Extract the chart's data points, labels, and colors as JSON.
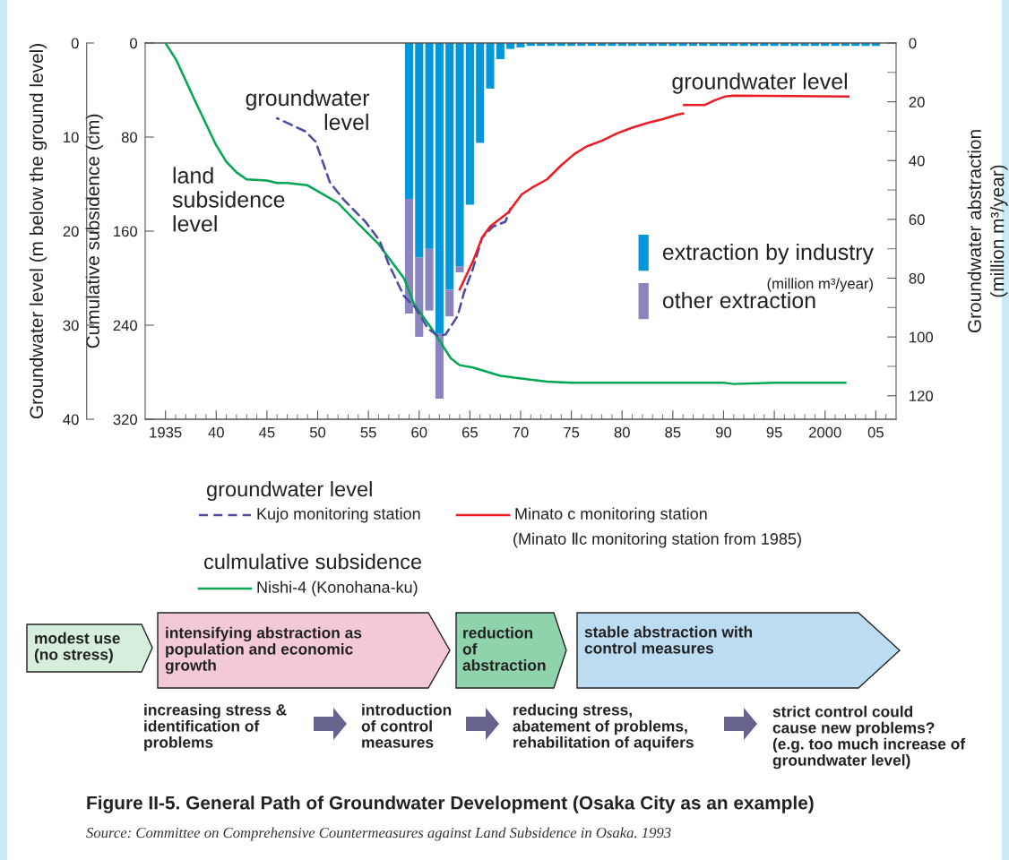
{
  "chart_data": {
    "type": "line",
    "title": "Figure II-5. General Path of Groundwater Development (Osaka City as an example)",
    "xlim": [
      1933,
      2007
    ],
    "xticks": [
      {
        "value": 1935,
        "label": "1935"
      },
      {
        "value": 1936,
        "label": null
      },
      {
        "value": 1937,
        "label": null
      },
      {
        "value": 1938,
        "label": null
      },
      {
        "value": 1939,
        "label": null
      },
      {
        "value": 1940,
        "label": "40"
      },
      {
        "value": 1941,
        "label": null
      },
      {
        "value": 1942,
        "label": null
      },
      {
        "value": 1943,
        "label": null
      },
      {
        "value": 1944,
        "label": null
      },
      {
        "value": 1945,
        "label": "45"
      },
      {
        "value": 1946,
        "label": null
      },
      {
        "value": 1947,
        "label": null
      },
      {
        "value": 1948,
        "label": null
      },
      {
        "value": 1949,
        "label": null
      },
      {
        "value": 1950,
        "label": "50"
      },
      {
        "value": 1951,
        "label": null
      },
      {
        "value": 1952,
        "label": null
      },
      {
        "value": 1953,
        "label": null
      },
      {
        "value": 1954,
        "label": null
      },
      {
        "value": 1955,
        "label": "55"
      },
      {
        "value": 1956,
        "label": null
      },
      {
        "value": 1957,
        "label": null
      },
      {
        "value": 1958,
        "label": null
      },
      {
        "value": 1959,
        "label": null
      },
      {
        "value": 1960,
        "label": "60"
      },
      {
        "value": 1961,
        "label": null
      },
      {
        "value": 1962,
        "label": null
      },
      {
        "value": 1963,
        "label": null
      },
      {
        "value": 1964,
        "label": null
      },
      {
        "value": 1965,
        "label": "65"
      },
      {
        "value": 1966,
        "label": null
      },
      {
        "value": 1967,
        "label": null
      },
      {
        "value": 1968,
        "label": null
      },
      {
        "value": 1969,
        "label": null
      },
      {
        "value": 1970,
        "label": "70"
      },
      {
        "value": 1971,
        "label": null
      },
      {
        "value": 1972,
        "label": null
      },
      {
        "value": 1973,
        "label": null
      },
      {
        "value": 1974,
        "label": null
      },
      {
        "value": 1975,
        "label": "75"
      },
      {
        "value": 1976,
        "label": null
      },
      {
        "value": 1977,
        "label": null
      },
      {
        "value": 1978,
        "label": null
      },
      {
        "value": 1979,
        "label": null
      },
      {
        "value": 1980,
        "label": "80"
      },
      {
        "value": 1981,
        "label": null
      },
      {
        "value": 1982,
        "label": null
      },
      {
        "value": 1983,
        "label": null
      },
      {
        "value": 1984,
        "label": null
      },
      {
        "value": 1985,
        "label": "85"
      },
      {
        "value": 1986,
        "label": null
      },
      {
        "value": 1987,
        "label": null
      },
      {
        "value": 1988,
        "label": null
      },
      {
        "value": 1989,
        "label": null
      },
      {
        "value": 1990,
        "label": "90"
      },
      {
        "value": 1991,
        "label": null
      },
      {
        "value": 1992,
        "label": null
      },
      {
        "value": 1993,
        "label": null
      },
      {
        "value": 1994,
        "label": null
      },
      {
        "value": 1995,
        "label": "95"
      },
      {
        "value": 1996,
        "label": null
      },
      {
        "value": 1997,
        "label": null
      },
      {
        "value": 1998,
        "label": null
      },
      {
        "value": 1999,
        "label": null
      },
      {
        "value": 2000,
        "label": "2000"
      },
      {
        "value": 2001,
        "label": null
      },
      {
        "value": 2002,
        "label": null
      },
      {
        "value": 2003,
        "label": null
      },
      {
        "value": 2004,
        "label": null
      },
      {
        "value": 2005,
        "label": "05"
      },
      {
        "value": 2006,
        "label": null
      }
    ],
    "ylabel": "Groundwater level (m below the ground level)",
    "ylim": [
      40,
      0
    ],
    "yticks": [
      0,
      10,
      20,
      30,
      40
    ],
    "y3label": "Cumulative subsidence (cm)",
    "y3lim": [
      320,
      0
    ],
    "y3ticks": [
      0,
      80,
      160,
      240,
      320
    ],
    "y2label": "Groundwater abstraction\n(million m³/year)",
    "y2lim": [
      128,
      0
    ],
    "y2ticks": [
      0,
      {
        "value": 10,
        "label": null
      },
      20,
      {
        "value": 30,
        "label": null
      },
      40,
      {
        "value": 50,
        "label": null
      },
      60,
      {
        "value": 70,
        "label": null
      },
      80,
      {
        "value": 90,
        "label": null
      },
      100,
      {
        "value": 110,
        "label": null
      },
      120
    ],
    "stacked": true,
    "legend": "bottom",
    "grid": false,
    "marker": "none",
    "series": [
      {
        "name": "extraction by industry",
        "type": "bar",
        "axis": "y2",
        "color": "#0097db",
        "x": [
          1959,
          1960,
          1961,
          1962,
          1963,
          1964,
          1965,
          1966,
          1967,
          1968,
          1969,
          1970,
          1971,
          1972,
          1973,
          1974,
          1975,
          1976,
          1977,
          1978,
          1979,
          1980,
          1981,
          1982,
          1983,
          1984,
          1985,
          1986,
          1987,
          1988,
          1989,
          1990,
          1991,
          1992,
          1993,
          1994,
          1995,
          1996,
          1997,
          1998,
          1999,
          2000,
          2001,
          2002,
          2003,
          2004,
          2005
        ],
        "values": [
          53,
          73,
          70,
          99,
          84,
          76,
          55,
          34,
          15.5,
          5.5,
          2,
          1.5,
          1,
          1,
          1,
          1,
          1,
          1,
          1,
          1,
          1,
          1,
          1,
          1,
          1,
          1,
          1,
          1,
          1,
          1,
          1,
          1,
          1,
          1,
          1,
          1,
          1,
          1,
          1,
          1,
          1,
          1,
          1,
          1,
          1,
          1,
          1
        ]
      },
      {
        "name": "other extraction",
        "type": "bar",
        "axis": "y2",
        "color": "#8a84bf",
        "x": [
          1959,
          1960,
          1961,
          1962,
          1963,
          1964
        ],
        "values": [
          39,
          27,
          21,
          22,
          9,
          2
        ]
      },
      {
        "name": "Kujo monitoring station",
        "axis": "y",
        "color": "#4b4ba0",
        "line_style": "dashed",
        "x": [
          1946,
          1948.8,
          1949.8,
          1951.2,
          1952.6,
          1954.7,
          1956.1,
          1957,
          1958.5,
          1959.6,
          1960.9,
          1961.8,
          1962.6,
          1963.8,
          1964.4,
          1965.3,
          1966.2,
          1967.3,
          1968.5,
          1969
        ],
        "values": [
          8.0,
          9.4,
          10.5,
          14.8,
          16.7,
          19.0,
          21.0,
          23.5,
          26.9,
          28.1,
          30.4,
          31.1,
          31.0,
          29.0,
          26.6,
          24.0,
          20.7,
          19.5,
          19.0,
          17.6
        ]
      },
      {
        "name": "Minato c monitoring station",
        "axis": "y",
        "color": "#ed1c24",
        "line_style": "solid",
        "x": [
          1964,
          1965.3,
          1966.2,
          1967,
          1968.8,
          1970.1,
          1971.1,
          1972.6,
          1974,
          1975.3,
          1976.5,
          1978,
          1979.5,
          1981,
          1982.5,
          1984,
          1985.5,
          1986,
          1986.05,
          1986.1,
          1988.1,
          1989.1,
          1990.1,
          1991,
          2002.3
        ],
        "values": [
          26.2,
          23.2,
          20.7,
          19.5,
          18.0,
          16.1,
          15.4,
          14.5,
          13.0,
          11.8,
          11.0,
          10.4,
          9.6,
          9.0,
          8.5,
          8.1,
          7.6,
          7.5,
          null,
          6.6,
          6.6,
          6.1,
          5.7,
          5.6,
          5.7
        ]
      },
      {
        "name": "Nishi-4 (Konohana-ku)",
        "axis": "y3",
        "color": "#00a651",
        "line_style": "solid",
        "x": [
          1935,
          1936.1,
          1937.9,
          1940,
          1941,
          1942,
          1943,
          1945,
          1946,
          1947,
          1949,
          1950,
          1952,
          1953.8,
          1956,
          1958.5,
          1959.5,
          1961.4,
          1963.1,
          1964,
          1965.3,
          1968,
          1969.7,
          1972.6,
          1975,
          1980,
          1985,
          1990,
          1991,
          1995,
          2002
        ],
        "values": [
          0,
          15,
          49,
          87,
          101,
          110,
          116,
          117,
          119,
          119,
          121,
          126,
          136,
          152,
          171,
          200,
          222,
          245,
          268,
          274,
          276,
          283,
          285,
          288,
          289,
          289,
          289,
          289,
          290,
          289,
          289
        ]
      }
    ],
    "annotations": [
      "groundwater\nlevel",
      "land\nsubsidence\nlevel",
      "groundwater level",
      "(million m³/year)",
      "groundwater level",
      "(Minato Ⅱc monitoring station from 1985)",
      "culmulative subsidence",
      "modest use\n(no stress)",
      "intensifying abstraction as\npopulation and economic\ngrowth",
      "reduction\nof\nabstraction",
      "stable abstraction with\ncontrol measures",
      "increasing stress &\nidentification of\nproblems",
      "introduction\nof control\nmeasures",
      "reducing stress,\nabatement of problems,\nrehabilitation of aquifers",
      "strict control could\ncause new problems?\n(e.g. too much increase of\ngroundwater level)",
      "Source: Committee on Comprehensive Countermeasures against Land Subsidence in Osaka. 1993"
    ]
  }
}
